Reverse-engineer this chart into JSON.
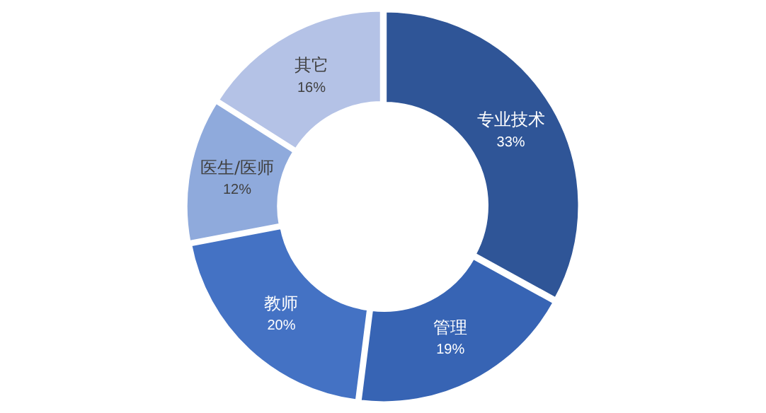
{
  "chart_data": {
    "type": "donut",
    "categories": [
      "专业技术",
      "管理",
      "教师",
      "医生/医师",
      "其它"
    ],
    "values": [
      33,
      19,
      20,
      12,
      16
    ],
    "value_labels": [
      "33%",
      "19%",
      "20%",
      "12%",
      "16%"
    ],
    "colors": [
      "#2f5597",
      "#3764b4",
      "#4472c4",
      "#8faadc",
      "#b4c2e6"
    ],
    "legend": false
  }
}
